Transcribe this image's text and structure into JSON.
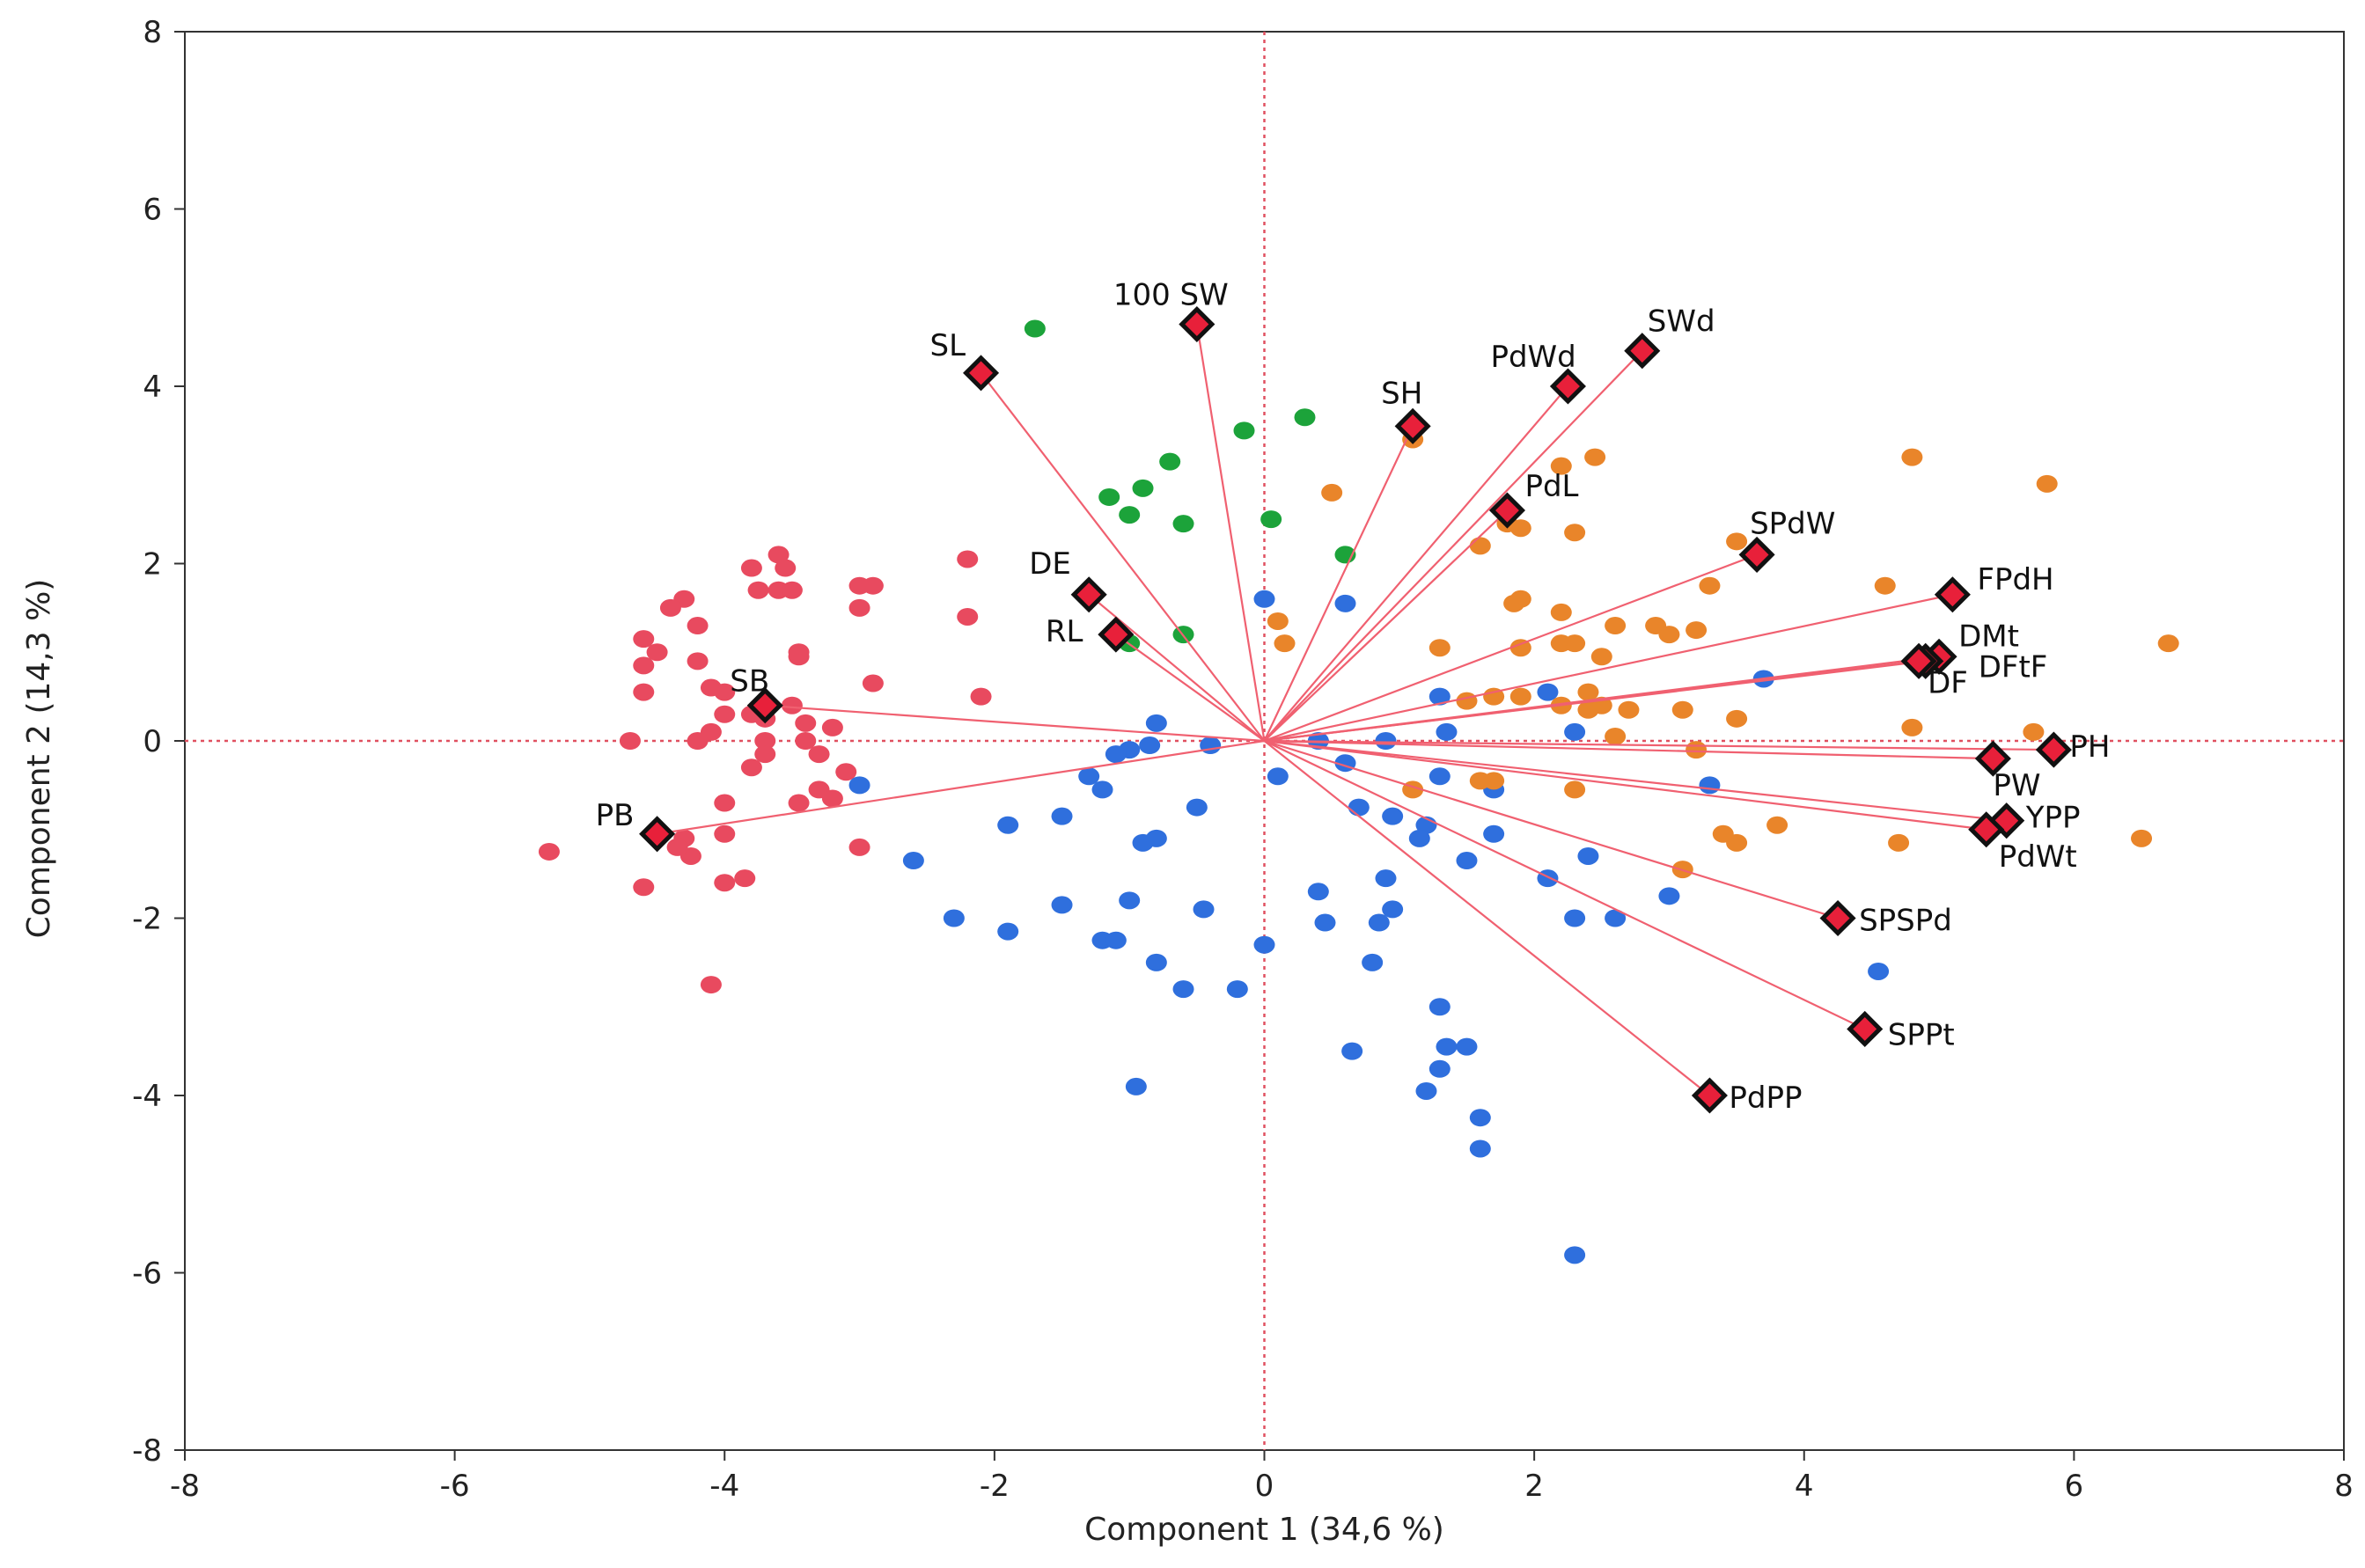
{
  "chart_data": {
    "type": "scatter",
    "subtype": "pca-biplot",
    "xlabel": "Component 1  (34,6 %)",
    "ylabel": "Component 2  (14,3 %)",
    "xlim": [
      -8,
      8
    ],
    "ylim": [
      -8,
      8
    ],
    "xticks": [
      -8,
      -6,
      -4,
      -2,
      0,
      2,
      4,
      6,
      8
    ],
    "yticks": [
      -8,
      -6,
      -4,
      -2,
      0,
      2,
      4,
      6,
      8
    ],
    "reference_lines": {
      "x": 0,
      "y": 0,
      "style": "dotted",
      "color": "#e05060"
    },
    "vector_color": "#f06070",
    "marker_color": "#e8203a",
    "loadings": [
      {
        "label": "100 SW",
        "x": -0.5,
        "y": 4.7
      },
      {
        "label": "SL",
        "x": -2.1,
        "y": 4.15
      },
      {
        "label": "SWd",
        "x": 2.8,
        "y": 4.4
      },
      {
        "label": "PdWd",
        "x": 2.25,
        "y": 4.0
      },
      {
        "label": "SH",
        "x": 1.1,
        "y": 3.55
      },
      {
        "label": "PdL",
        "x": 1.8,
        "y": 2.6
      },
      {
        "label": "SPdW",
        "x": 3.65,
        "y": 2.1
      },
      {
        "label": "FPdH",
        "x": 5.1,
        "y": 1.65
      },
      {
        "label": "DMt",
        "x": 5.0,
        "y": 0.95
      },
      {
        "label": "DFtF",
        "x": 4.9,
        "y": 0.9
      },
      {
        "label": "DF",
        "x": 4.85,
        "y": 0.9
      },
      {
        "label": "PH",
        "x": 5.85,
        "y": -0.1
      },
      {
        "label": "PW",
        "x": 5.4,
        "y": -0.2
      },
      {
        "label": "YPP",
        "x": 5.5,
        "y": -0.9
      },
      {
        "label": "PdWt",
        "x": 5.35,
        "y": -1.0
      },
      {
        "label": "SPSPd",
        "x": 4.25,
        "y": -2.0
      },
      {
        "label": "SPPt",
        "x": 4.45,
        "y": -3.25
      },
      {
        "label": "PdPP",
        "x": 3.3,
        "y": -4.0
      },
      {
        "label": "DE",
        "x": -1.3,
        "y": 1.65
      },
      {
        "label": "RL",
        "x": -1.1,
        "y": 1.2
      },
      {
        "label": "SB",
        "x": -3.7,
        "y": 0.4
      },
      {
        "label": "PB",
        "x": -4.5,
        "y": -1.05
      }
    ],
    "series": [
      {
        "color": "#e84a5f",
        "points": [
          [
            -3.6,
            2.1
          ],
          [
            -3.8,
            1.95
          ],
          [
            -3.55,
            1.95
          ],
          [
            -3.75,
            1.7
          ],
          [
            -3.6,
            1.7
          ],
          [
            -3.5,
            1.7
          ],
          [
            -3.0,
            1.75
          ],
          [
            -2.9,
            1.75
          ],
          [
            -3.0,
            1.5
          ],
          [
            -4.3,
            1.6
          ],
          [
            -4.4,
            1.5
          ],
          [
            -4.2,
            1.3
          ],
          [
            -4.6,
            1.15
          ],
          [
            -4.5,
            1.0
          ],
          [
            -4.2,
            0.9
          ],
          [
            -4.6,
            0.85
          ],
          [
            -3.45,
            1.0
          ],
          [
            -3.45,
            0.95
          ],
          [
            -2.9,
            0.65
          ],
          [
            -4.1,
            0.6
          ],
          [
            -4.0,
            0.55
          ],
          [
            -4.6,
            0.55
          ],
          [
            -3.5,
            0.4
          ],
          [
            -4.0,
            0.3
          ],
          [
            -3.8,
            0.3
          ],
          [
            -3.7,
            0.25
          ],
          [
            -3.4,
            0.2
          ],
          [
            -3.2,
            0.15
          ],
          [
            -4.1,
            0.1
          ],
          [
            -4.2,
            0.0
          ],
          [
            -4.7,
            0.0
          ],
          [
            -3.7,
            0.0
          ],
          [
            -3.4,
            0.0
          ],
          [
            -3.3,
            -0.15
          ],
          [
            -3.1,
            -0.35
          ],
          [
            -3.3,
            -0.55
          ],
          [
            -3.45,
            -0.7
          ],
          [
            -3.2,
            -0.65
          ],
          [
            -4.0,
            -0.7
          ],
          [
            -4.0,
            -1.05
          ],
          [
            -4.3,
            -1.1
          ],
          [
            -4.25,
            -1.3
          ],
          [
            -5.3,
            -1.25
          ],
          [
            -3.0,
            -1.2
          ],
          [
            -3.85,
            -1.55
          ],
          [
            -4.0,
            -1.6
          ],
          [
            -4.6,
            -1.65
          ],
          [
            -4.1,
            -2.75
          ],
          [
            -2.2,
            2.05
          ],
          [
            -2.2,
            1.4
          ],
          [
            -2.1,
            0.5
          ],
          [
            -3.7,
            -0.15
          ],
          [
            -3.8,
            -0.3
          ],
          [
            -4.35,
            -1.2
          ]
        ]
      },
      {
        "color": "#1ca33a",
        "points": [
          [
            -1.7,
            4.65
          ],
          [
            -0.15,
            3.5
          ],
          [
            0.3,
            3.65
          ],
          [
            -0.7,
            3.15
          ],
          [
            -0.9,
            2.85
          ],
          [
            -1.15,
            2.75
          ],
          [
            -1.0,
            2.55
          ],
          [
            -0.6,
            2.45
          ],
          [
            0.05,
            2.5
          ],
          [
            0.6,
            2.1
          ],
          [
            -0.6,
            1.2
          ],
          [
            -1.0,
            1.1
          ]
        ]
      },
      {
        "color": "#2f6fdd",
        "points": [
          [
            0.0,
            1.6
          ],
          [
            0.6,
            1.55
          ],
          [
            3.7,
            0.7
          ],
          [
            -0.8,
            0.2
          ],
          [
            -0.85,
            -0.05
          ],
          [
            -1.0,
            -0.1
          ],
          [
            -1.1,
            -0.15
          ],
          [
            -0.4,
            -0.05
          ],
          [
            0.4,
            0.0
          ],
          [
            0.6,
            -0.25
          ],
          [
            0.9,
            0.0
          ],
          [
            1.3,
            0.5
          ],
          [
            2.1,
            0.55
          ],
          [
            1.35,
            0.1
          ],
          [
            2.3,
            0.1
          ],
          [
            -3.0,
            -0.5
          ],
          [
            -1.3,
            -0.4
          ],
          [
            -1.2,
            -0.55
          ],
          [
            0.1,
            -0.4
          ],
          [
            1.3,
            -0.4
          ],
          [
            1.7,
            -0.55
          ],
          [
            3.3,
            -0.5
          ],
          [
            -1.9,
            -0.95
          ],
          [
            -1.5,
            -0.85
          ],
          [
            -0.5,
            -0.75
          ],
          [
            0.7,
            -0.75
          ],
          [
            0.95,
            -0.85
          ],
          [
            1.2,
            -0.95
          ],
          [
            1.7,
            -1.05
          ],
          [
            -2.6,
            -1.35
          ],
          [
            -0.9,
            -1.15
          ],
          [
            -0.8,
            -1.1
          ],
          [
            1.15,
            -1.1
          ],
          [
            1.5,
            -1.35
          ],
          [
            2.4,
            -1.3
          ],
          [
            2.1,
            -1.55
          ],
          [
            0.4,
            -1.7
          ],
          [
            0.9,
            -1.55
          ],
          [
            -1.0,
            -1.8
          ],
          [
            -1.5,
            -1.85
          ],
          [
            -0.45,
            -1.9
          ],
          [
            0.95,
            -1.9
          ],
          [
            3.0,
            -1.75
          ],
          [
            -2.3,
            -2.0
          ],
          [
            -1.9,
            -2.15
          ],
          [
            0.45,
            -2.05
          ],
          [
            0.85,
            -2.05
          ],
          [
            2.3,
            -2.0
          ],
          [
            2.6,
            -2.0
          ],
          [
            -1.2,
            -2.25
          ],
          [
            -1.1,
            -2.25
          ],
          [
            -0.8,
            -2.5
          ],
          [
            0.8,
            -2.5
          ],
          [
            0.0,
            -2.3
          ],
          [
            -0.6,
            -2.8
          ],
          [
            -0.2,
            -2.8
          ],
          [
            1.3,
            -3.0
          ],
          [
            4.55,
            -2.6
          ],
          [
            1.35,
            -3.45
          ],
          [
            1.5,
            -3.45
          ],
          [
            0.65,
            -3.5
          ],
          [
            1.3,
            -3.7
          ],
          [
            1.2,
            -3.95
          ],
          [
            -0.95,
            -3.9
          ],
          [
            1.6,
            -4.25
          ],
          [
            1.6,
            -4.6
          ],
          [
            2.3,
            -5.8
          ]
        ]
      },
      {
        "color": "#e9852a",
        "points": [
          [
            1.1,
            3.4
          ],
          [
            2.2,
            3.1
          ],
          [
            2.45,
            3.2
          ],
          [
            4.8,
            3.2
          ],
          [
            5.8,
            2.9
          ],
          [
            0.5,
            2.8
          ],
          [
            1.8,
            2.45
          ],
          [
            1.9,
            2.4
          ],
          [
            2.3,
            2.35
          ],
          [
            1.6,
            2.2
          ],
          [
            3.5,
            2.25
          ],
          [
            3.3,
            1.75
          ],
          [
            4.6,
            1.75
          ],
          [
            1.9,
            1.6
          ],
          [
            1.85,
            1.55
          ],
          [
            2.2,
            1.45
          ],
          [
            2.6,
            1.3
          ],
          [
            2.9,
            1.3
          ],
          [
            3.0,
            1.2
          ],
          [
            3.2,
            1.25
          ],
          [
            0.1,
            1.35
          ],
          [
            0.15,
            1.1
          ],
          [
            1.3,
            1.05
          ],
          [
            1.9,
            1.05
          ],
          [
            2.2,
            1.1
          ],
          [
            2.3,
            1.1
          ],
          [
            2.5,
            0.95
          ],
          [
            6.7,
            1.1
          ],
          [
            1.7,
            0.5
          ],
          [
            1.9,
            0.5
          ],
          [
            2.4,
            0.55
          ],
          [
            2.5,
            0.4
          ],
          [
            2.4,
            0.35
          ],
          [
            2.7,
            0.35
          ],
          [
            3.1,
            0.35
          ],
          [
            3.5,
            0.25
          ],
          [
            1.5,
            0.45
          ],
          [
            2.2,
            0.4
          ],
          [
            4.8,
            0.15
          ],
          [
            5.7,
            0.1
          ],
          [
            2.6,
            0.05
          ],
          [
            3.2,
            -0.1
          ],
          [
            1.1,
            -0.55
          ],
          [
            1.7,
            -0.45
          ],
          [
            1.6,
            -0.45
          ],
          [
            2.3,
            -0.55
          ],
          [
            3.4,
            -1.05
          ],
          [
            3.5,
            -1.15
          ],
          [
            3.8,
            -0.95
          ],
          [
            4.7,
            -1.15
          ],
          [
            6.5,
            -1.1
          ],
          [
            3.1,
            -1.45
          ]
        ]
      }
    ]
  }
}
